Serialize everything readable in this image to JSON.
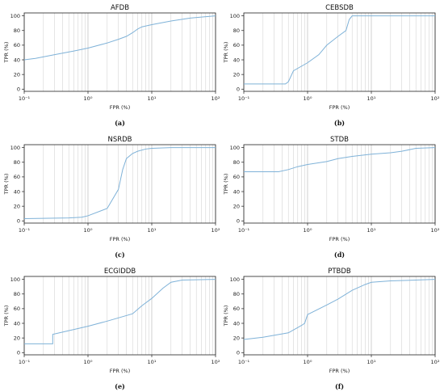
{
  "chart_data": [
    {
      "type": "line",
      "title": "AFDB",
      "caption": "(a)",
      "xlabel": "FPR (%)",
      "ylabel": "TPR (%)",
      "xscale": "log",
      "xlim": [
        0.1,
        100
      ],
      "ylim": [
        -3,
        104
      ],
      "xticks": [
        "10⁻¹",
        "10⁰",
        "10¹",
        "10²"
      ],
      "yticks": [
        "0",
        "20",
        "40",
        "60",
        "80",
        "100"
      ],
      "grid": "x-minor-and-major",
      "line_color": "#7fb2d8",
      "series": [
        {
          "x": [
            0.1,
            0.15,
            0.3,
            0.6,
            1,
            2,
            3,
            4,
            5,
            6,
            7,
            10,
            20,
            40,
            100
          ],
          "y": [
            40,
            42,
            47,
            52,
            56,
            63,
            68,
            72,
            77,
            82,
            85,
            88,
            93,
            97,
            100
          ]
        }
      ]
    },
    {
      "type": "line",
      "title": "CEBSDB",
      "caption": "(b)",
      "xlabel": "FPR (%)",
      "ylabel": "TPR (%)",
      "xscale": "log",
      "xlim": [
        0.1,
        100
      ],
      "ylim": [
        -3,
        104
      ],
      "xticks": [
        "10⁻¹",
        "10⁰",
        "10¹",
        "10²"
      ],
      "yticks": [
        "0",
        "20",
        "40",
        "60",
        "80",
        "100"
      ],
      "grid": "x-minor-and-major",
      "line_color": "#7fb2d8",
      "series": [
        {
          "x": [
            0.1,
            0.45,
            0.5,
            0.6,
            1,
            1.5,
            2,
            3,
            4,
            4.5,
            5,
            10,
            100
          ],
          "y": [
            7,
            7,
            10,
            25,
            36,
            47,
            60,
            72,
            80,
            95,
            100,
            100,
            100
          ]
        }
      ]
    },
    {
      "type": "line",
      "title": "NSRDB",
      "caption": "(c)",
      "xlabel": "FPR (%)",
      "ylabel": "TPR (%)",
      "xscale": "log",
      "xlim": [
        0.1,
        100
      ],
      "ylim": [
        -3,
        104
      ],
      "xticks": [
        "10⁻¹",
        "10⁰",
        "10¹",
        "10²"
      ],
      "yticks": [
        "0",
        "20",
        "40",
        "60",
        "80",
        "100"
      ],
      "grid": "x-minor-and-major",
      "line_color": "#7fb2d8",
      "series": [
        {
          "x": [
            0.1,
            0.5,
            0.8,
            1,
            2,
            3,
            3.5,
            4,
            5,
            6,
            8,
            10,
            20,
            100
          ],
          "y": [
            3,
            4,
            5,
            7,
            17,
            43,
            70,
            85,
            92,
            95,
            98,
            99,
            100,
            100
          ]
        }
      ]
    },
    {
      "type": "line",
      "title": "STDB",
      "caption": "(d)",
      "xlabel": "FPR (%)",
      "ylabel": "TPR (%)",
      "xscale": "log",
      "xlim": [
        0.1,
        100
      ],
      "ylim": [
        -3,
        104
      ],
      "xticks": [
        "10⁻¹",
        "10⁰",
        "10¹",
        "10²"
      ],
      "yticks": [
        "0",
        "20",
        "40",
        "60",
        "80",
        "100"
      ],
      "grid": "x-minor-and-major",
      "line_color": "#7fb2d8",
      "series": [
        {
          "x": [
            0.1,
            0.2,
            0.35,
            0.5,
            0.7,
            1,
            2,
            3,
            5,
            10,
            20,
            30,
            50,
            100
          ],
          "y": [
            67,
            67,
            67,
            70,
            74,
            77,
            81,
            85,
            88,
            91,
            93,
            95,
            99,
            100
          ]
        }
      ]
    },
    {
      "type": "line",
      "title": "ECGIDDB",
      "caption": "(e)",
      "xlabel": "FPR (%)",
      "ylabel": "TPR (%)",
      "xscale": "log",
      "xlim": [
        0.1,
        100
      ],
      "ylim": [
        -3,
        104
      ],
      "xticks": [
        "10⁻¹",
        "10⁰",
        "10¹",
        "10²"
      ],
      "yticks": [
        "0",
        "20",
        "40",
        "60",
        "80",
        "100"
      ],
      "grid": "x-minor-and-major",
      "line_color": "#7fb2d8",
      "series": [
        {
          "x": [
            0.1,
            0.28,
            0.28,
            0.4,
            1,
            2,
            5,
            7,
            10,
            15,
            20,
            30,
            100
          ],
          "y": [
            12,
            12,
            25,
            28,
            36,
            43,
            53,
            64,
            74,
            88,
            96,
            99,
            100
          ]
        }
      ]
    },
    {
      "type": "line",
      "title": "PTBDB",
      "caption": "(f)",
      "xlabel": "FPR (%)",
      "ylabel": "TPR (%)",
      "xscale": "log",
      "xlim": [
        0.1,
        100
      ],
      "ylim": [
        -3,
        104
      ],
      "xticks": [
        "10⁻¹",
        "10⁰",
        "10¹",
        "10²"
      ],
      "yticks": [
        "0",
        "20",
        "40",
        "60",
        "80",
        "100"
      ],
      "grid": "x-minor-and-major",
      "line_color": "#7fb2d8",
      "series": [
        {
          "x": [
            0.1,
            0.2,
            0.5,
            0.8,
            0.9,
            1,
            2,
            3,
            5,
            8,
            10,
            20,
            50,
            100
          ],
          "y": [
            18,
            21,
            27,
            37,
            40,
            52,
            65,
            73,
            85,
            93,
            96,
            98,
            99,
            100
          ]
        }
      ]
    }
  ]
}
